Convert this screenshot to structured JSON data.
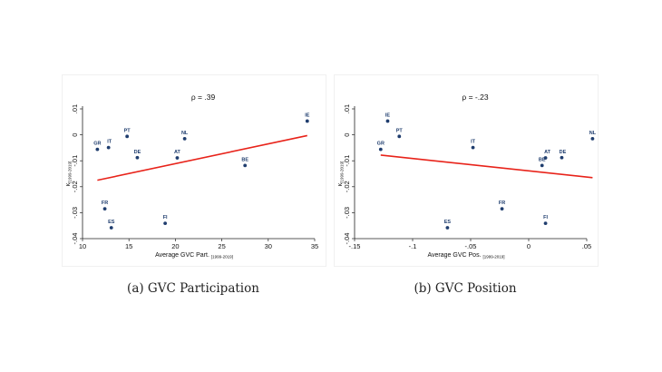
{
  "captions": {
    "a": "(a) GVC Participation",
    "b": "(b) GVC Position"
  },
  "chart_data": [
    {
      "type": "scatter",
      "title": "ρ = .39",
      "rho_label": "ρ =",
      "rho_value": ".39",
      "xlabel": "Average GVC Part.",
      "xlabel_sub": "[1999-2019]",
      "ylabel": "κ",
      "ylabel_sub": "[1999-2019]",
      "xlim": [
        10,
        35
      ],
      "ylim": [
        -0.04,
        0.01
      ],
      "xticks": [
        10,
        15,
        20,
        25,
        30,
        35
      ],
      "xtick_labels": [
        "10",
        "15",
        "20",
        "25",
        "30",
        "35"
      ],
      "yticks": [
        0.01,
        0,
        -0.01,
        -0.02,
        -0.03,
        -0.04
      ],
      "ytick_labels": [
        ".01",
        "0",
        "-.01",
        "-.02",
        "-.03",
        "-.04"
      ],
      "points": [
        {
          "label": "GR",
          "x": 11.6,
          "y": -0.0056
        },
        {
          "label": "IT",
          "x": 12.8,
          "y": -0.0049
        },
        {
          "label": "PT",
          "x": 14.8,
          "y": -0.0006
        },
        {
          "label": "DE",
          "x": 15.9,
          "y": -0.0088
        },
        {
          "label": "NL",
          "x": 21.0,
          "y": -0.0015
        },
        {
          "label": "AT",
          "x": 20.2,
          "y": -0.0089
        },
        {
          "label": "BE",
          "x": 27.5,
          "y": -0.0118
        },
        {
          "label": "IE",
          "x": 34.2,
          "y": 0.0053
        },
        {
          "label": "FR",
          "x": 12.4,
          "y": -0.0285
        },
        {
          "label": "ES",
          "x": 13.1,
          "y": -0.0358
        },
        {
          "label": "FI",
          "x": 18.9,
          "y": -0.0341
        }
      ],
      "fit_line": {
        "x": [
          11.6,
          34.2
        ],
        "y": [
          -0.0175,
          -0.0003
        ]
      }
    },
    {
      "type": "scatter",
      "title": "ρ = -.23",
      "rho_label": "ρ =",
      "rho_value": "-.23",
      "xlabel": "Average GVC Pos.",
      "xlabel_sub": "[1999-2019]",
      "ylabel": "κ",
      "ylabel_sub": "[1999-2019]",
      "xlim": [
        -0.15,
        0.05
      ],
      "ylim": [
        -0.04,
        0.01
      ],
      "xticks": [
        -0.15,
        -0.1,
        -0.05,
        0,
        0.05
      ],
      "xtick_labels": [
        "-.15",
        "-.1",
        "-.05",
        "0",
        ".05"
      ],
      "yticks": [
        0.01,
        0,
        -0.01,
        -0.02,
        -0.03,
        -0.04
      ],
      "ytick_labels": [
        ".01",
        "0",
        "-.01",
        "-.02",
        "-.03",
        "-.04"
      ],
      "points": [
        {
          "label": "IE",
          "x": -0.1215,
          "y": 0.0053
        },
        {
          "label": "PT",
          "x": -0.1115,
          "y": -0.0006
        },
        {
          "label": "GR",
          "x": -0.1275,
          "y": -0.0056
        },
        {
          "label": "IT",
          "x": -0.048,
          "y": -0.0049
        },
        {
          "label": "AT",
          "x": 0.0145,
          "y": -0.0089
        },
        {
          "label": "DE",
          "x": 0.0285,
          "y": -0.0088
        },
        {
          "label": "BE",
          "x": 0.0115,
          "y": -0.0118
        },
        {
          "label": "NL",
          "x": 0.055,
          "y": -0.0015
        },
        {
          "label": "FR",
          "x": -0.023,
          "y": -0.0285
        },
        {
          "label": "ES",
          "x": -0.07,
          "y": -0.0358
        },
        {
          "label": "FI",
          "x": 0.0145,
          "y": -0.0341
        }
      ],
      "fit_line": {
        "x": [
          -0.1275,
          0.055
        ],
        "y": [
          -0.0078,
          -0.0165
        ]
      }
    }
  ],
  "colors": {
    "point": "#1f3d6e",
    "label": "#1f3d6e",
    "fit_line": "#e8231a",
    "axis": "#222222"
  }
}
